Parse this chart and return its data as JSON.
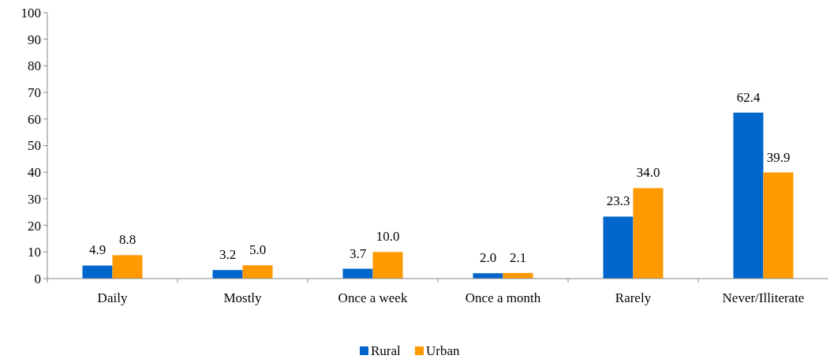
{
  "chart_data": {
    "type": "bar",
    "categories": [
      "Daily",
      "Mostly",
      "Once a week",
      "Once a month",
      "Rarely",
      "Never/Illiterate"
    ],
    "series": [
      {
        "name": "Rural",
        "color": "#0066cc",
        "values": [
          4.9,
          3.2,
          3.7,
          2.0,
          23.3,
          62.4
        ],
        "value_labels": [
          "4.9",
          "3.2",
          "3.7",
          "2.0",
          "23.3",
          "62.4"
        ]
      },
      {
        "name": "Urban",
        "color": "#ff9900",
        "values": [
          8.8,
          5.0,
          10.0,
          2.1,
          34.0,
          39.9
        ],
        "value_labels": [
          "8.8",
          "5.0",
          "10.0",
          "2.1",
          "34.0",
          "39.9"
        ]
      }
    ],
    "ylim": [
      0,
      100
    ],
    "yticks": [
      0,
      10,
      20,
      30,
      40,
      50,
      60,
      70,
      80,
      90,
      100
    ],
    "grid": false,
    "legend": "bottom"
  }
}
